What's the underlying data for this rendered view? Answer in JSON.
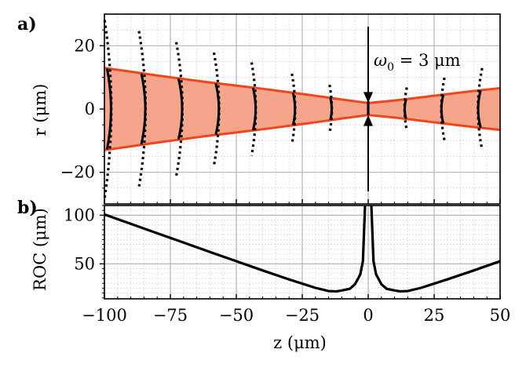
{
  "figure": {
    "panel_a_label": "a)",
    "panel_b_label": "b)",
    "annotation_text": "ω0 = 3 μm",
    "annotation_main": "ω",
    "annotation_sub": "0",
    "annotation_rest": " = 3 μm"
  },
  "colors": {
    "beam_edge": "#f2461a",
    "beam_fill": "#f6a58d",
    "curve": "#000000",
    "grid_major": "#b5b5b5",
    "grid_minor": "#cccccc"
  },
  "chart_data": [
    {
      "type": "area",
      "panel": "a",
      "title": "",
      "xlabel": "",
      "ylabel": "r (μm)",
      "xlim": [
        -100,
        50
      ],
      "ylim": [
        -30,
        30
      ],
      "xticks": [
        -100,
        -75,
        -50,
        -25,
        0,
        25,
        50
      ],
      "yticks": [
        -20,
        0,
        20
      ],
      "ytick_labels": [
        "−20",
        "0",
        "20"
      ],
      "grid": true,
      "series": [
        {
          "description_of_curve": "beam radius envelope",
          "x": [
            -100,
            -90,
            -80,
            -70,
            -60,
            -50,
            -40,
            -30,
            -20,
            -10,
            0,
            10,
            20,
            30,
            40,
            50
          ],
          "upper": [
            13,
            11.8,
            10.6,
            9.5,
            8.4,
            7.4,
            6.4,
            5.3,
            4.2,
            3.0,
            1.9,
            2.7,
            3.7,
            4.7,
            5.7,
            6.6
          ],
          "lower": [
            -13,
            -11.8,
            -10.6,
            -9.5,
            -8.4,
            -7.4,
            -6.4,
            -5.3,
            -4.2,
            -3.0,
            -1.9,
            -2.7,
            -3.7,
            -4.7,
            -5.7,
            -6.6
          ]
        }
      ],
      "wavefronts_x": [
        -98,
        -85,
        -71,
        -57,
        -43,
        -28,
        -14,
        0,
        14,
        28,
        42
      ],
      "waist_marker_x": 0
    },
    {
      "type": "line",
      "panel": "b",
      "title": "",
      "xlabel": "z (μm)",
      "ylabel": "ROC (μm)",
      "xlim": [
        -100,
        50
      ],
      "ylim": [
        14,
        110
      ],
      "xticks": [
        -100,
        -75,
        -50,
        -25,
        0,
        25,
        50
      ],
      "xtick_labels": [
        "−100",
        "−75",
        "−50",
        "−25",
        "0",
        "25",
        "50"
      ],
      "yticks": [
        50,
        100
      ],
      "ytick_labels": [
        "50",
        "100"
      ],
      "grid": true,
      "series": [
        {
          "x": [
            -100,
            -90,
            -80,
            -70,
            -60,
            -50,
            -40,
            -30,
            -20,
            -15,
            -12,
            -10,
            -7,
            -5,
            -3,
            -2,
            -1.2,
            1.2,
            2,
            3,
            5,
            7,
            10,
            12,
            15,
            20,
            30,
            40,
            50
          ],
          "y": [
            100.8,
            91.1,
            81.5,
            71.9,
            62.2,
            52.7,
            43.2,
            34.0,
            25.3,
            22.0,
            21.7,
            22.6,
            24.3,
            29.0,
            39.1,
            52.9,
            110,
            110,
            52.9,
            39.1,
            29.0,
            24.3,
            22.6,
            21.7,
            22.0,
            25.3,
            34.0,
            43.2,
            52.7
          ]
        }
      ]
    }
  ]
}
